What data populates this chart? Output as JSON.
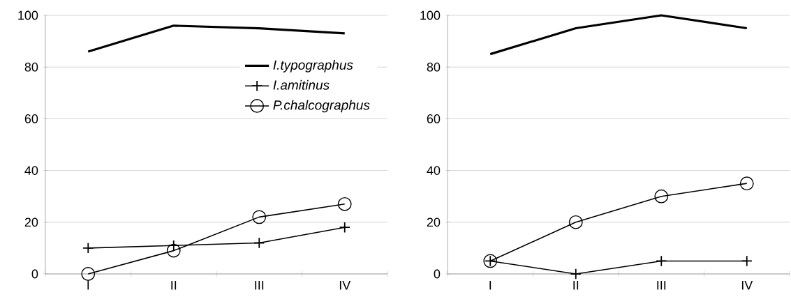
{
  "chart_data": [
    {
      "type": "line",
      "categories": [
        "I",
        "II",
        "III",
        "IV"
      ],
      "ylim": [
        0,
        100
      ],
      "yticks": [
        0,
        20,
        40,
        60,
        80,
        100
      ],
      "grid": "y",
      "legend": "top right",
      "series": [
        {
          "name": "*I.typographus*",
          "color": "#000000",
          "marker": "none",
          "values": [
            86,
            96,
            95,
            93
          ]
        },
        {
          "name": "*I.amitinus*",
          "color": "#000000",
          "marker": "cross",
          "values": [
            10,
            11,
            12,
            18
          ]
        },
        {
          "name": "*P.chalcographus*",
          "color": "#000000",
          "marker": "circle",
          "values": [
            0,
            9,
            22,
            27
          ]
        }
      ]
    },
    {
      "type": "line",
      "categories": [
        "I",
        "II",
        "III",
        "IV"
      ],
      "ylim": [
        0,
        100
      ],
      "yticks": [
        0,
        20,
        40,
        60,
        80,
        100
      ],
      "grid": "y",
      "series": [
        {
          "color": "#000000",
          "marker": "none",
          "values": [
            85,
            95,
            100,
            95
          ]
        },
        {
          "color": "#000000",
          "marker": "cross",
          "values": [
            5,
            0,
            5,
            5
          ]
        },
        {
          "color": "#000000",
          "marker": "circle",
          "values": [
            5,
            20,
            30,
            35
          ]
        }
      ]
    }
  ]
}
